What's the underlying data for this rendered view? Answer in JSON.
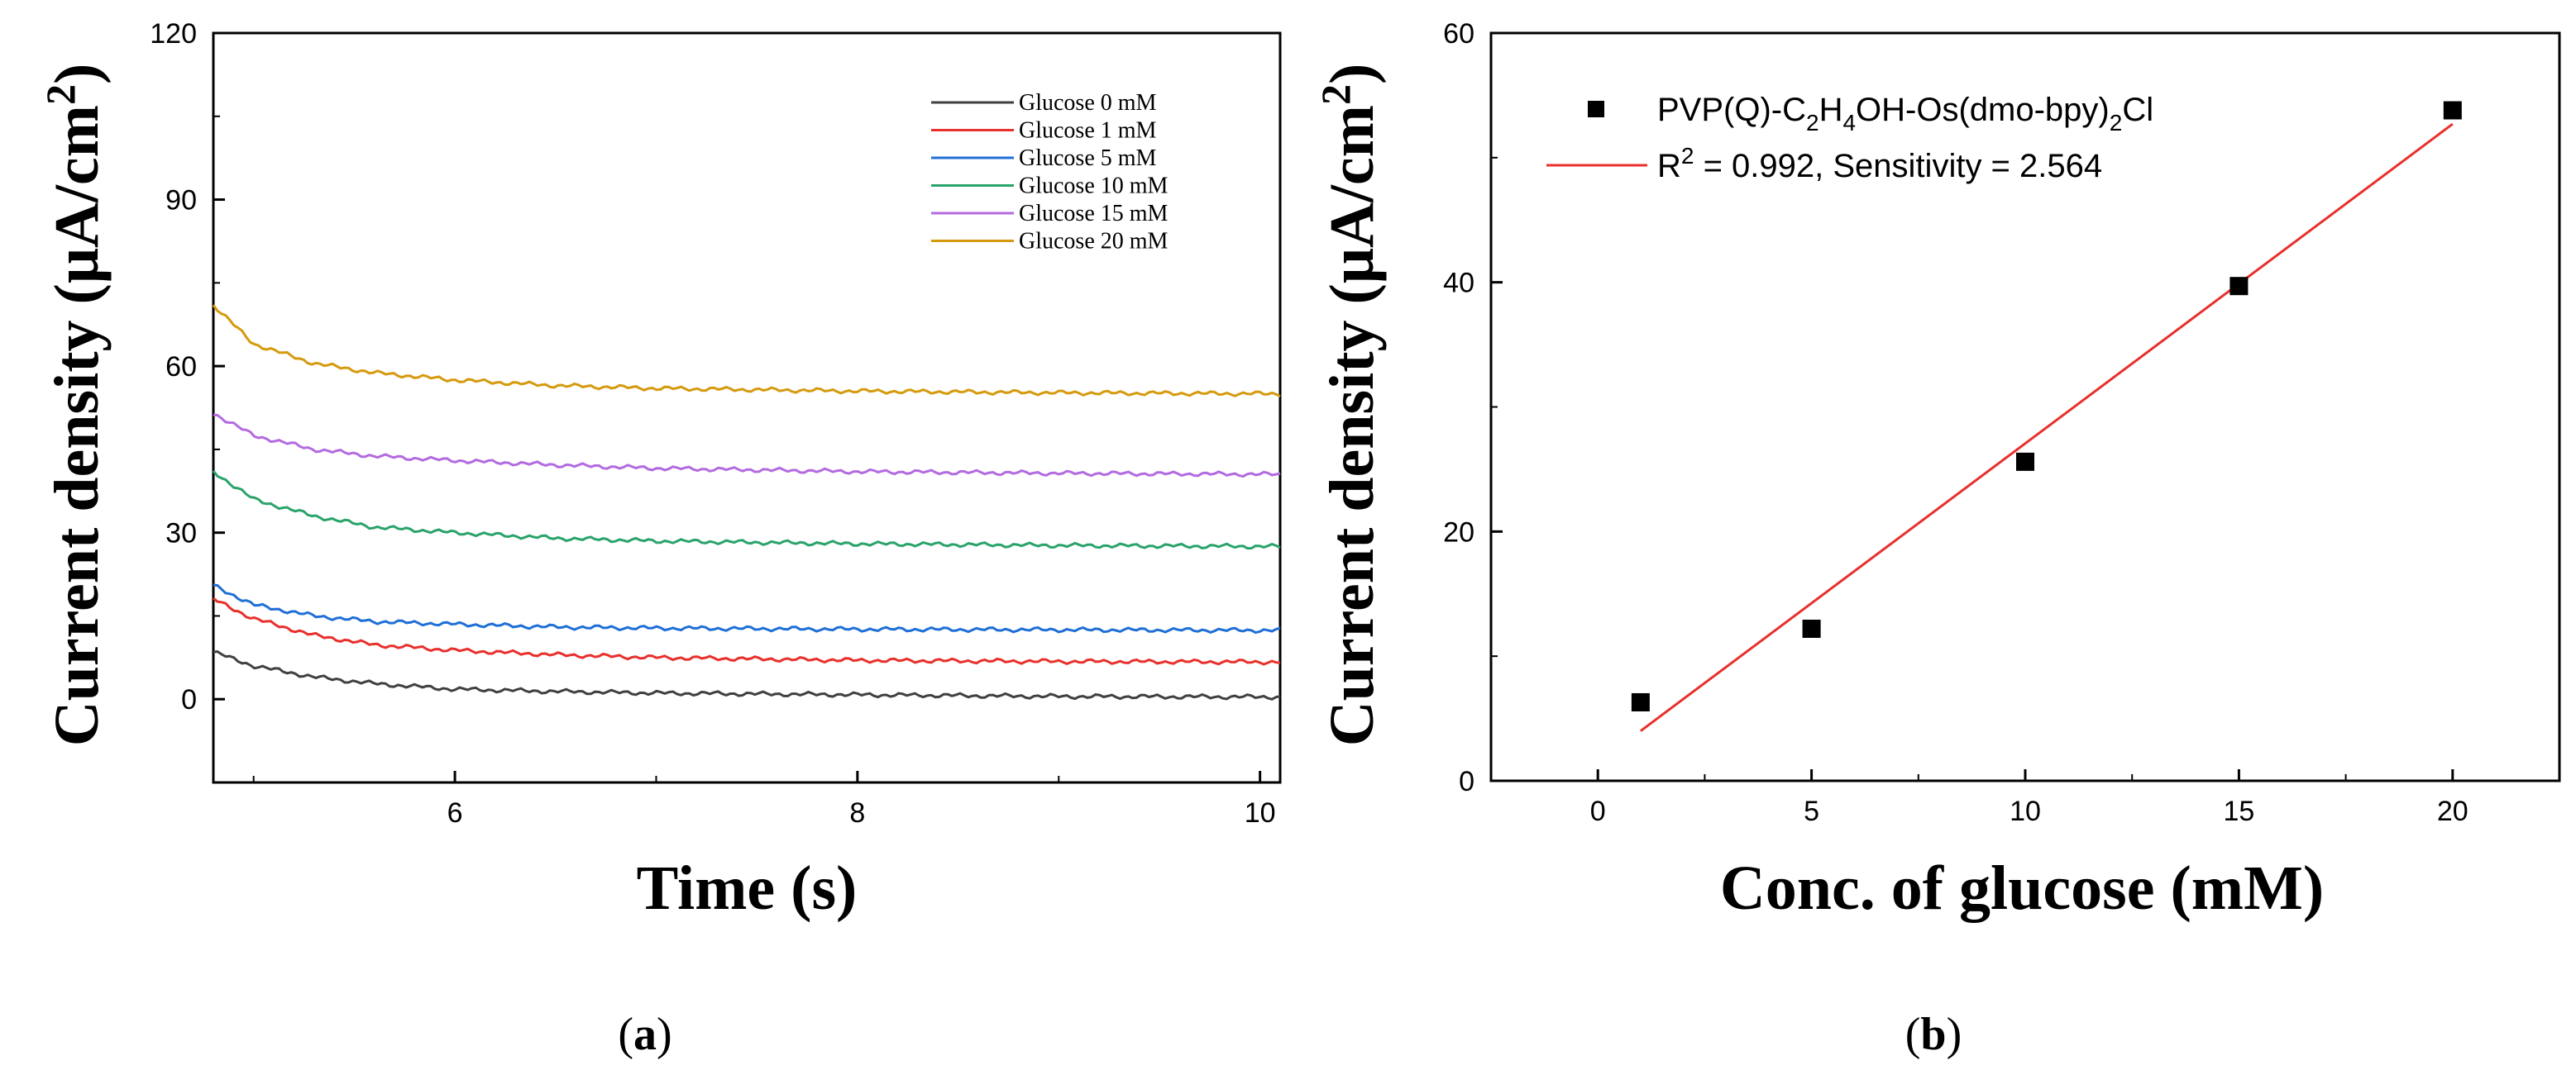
{
  "chart_data": [
    {
      "panel": "a",
      "type": "line",
      "xlabel": "Time (s)",
      "ylabel": "Current density (μA/cm²)",
      "ylabel_main": "Current density (μA/cm",
      "ylabel_sup": "2",
      "ylabel_close": ")",
      "xlim": [
        4.8,
        10.1
      ],
      "ylim": [
        -15,
        120
      ],
      "xticks": [
        6,
        8,
        10
      ],
      "yticks": [
        0,
        30,
        60,
        90,
        120
      ],
      "legend_position": "top-right",
      "x_start": 4.8,
      "x_end": 10.1,
      "series": [
        {
          "name": "Glucose 0 mM",
          "color": "#404040",
          "x": [
            4.8,
            5.0,
            5.3,
            5.6,
            6.0,
            6.5,
            7.0,
            8.0,
            9.0,
            10.1
          ],
          "y": [
            8.5,
            6.0,
            4.0,
            2.8,
            1.8,
            1.4,
            1.1,
            0.8,
            0.5,
            0.4
          ]
        },
        {
          "name": "Glucose 1 mM",
          "color": "#e8302c",
          "x": [
            4.8,
            5.0,
            5.3,
            5.6,
            6.0,
            6.5,
            7.0,
            8.0,
            9.0,
            10.1
          ],
          "y": [
            18.0,
            14.5,
            11.5,
            9.8,
            8.8,
            8.0,
            7.5,
            7.0,
            6.8,
            6.7
          ]
        },
        {
          "name": "Glucose 5 mM",
          "color": "#1f6fd6",
          "x": [
            4.8,
            5.0,
            5.3,
            5.6,
            6.0,
            6.5,
            7.0,
            8.0,
            9.0,
            10.1
          ],
          "y": [
            20.5,
            17.0,
            15.0,
            14.0,
            13.5,
            13.0,
            12.8,
            12.6,
            12.5,
            12.4
          ]
        },
        {
          "name": "Glucose 10 mM",
          "color": "#2aa36b",
          "x": [
            4.8,
            5.0,
            5.3,
            5.6,
            6.0,
            6.5,
            7.0,
            8.0,
            9.0,
            10.1
          ],
          "y": [
            41.0,
            36.0,
            33.0,
            31.0,
            30.0,
            29.0,
            28.5,
            28.0,
            27.7,
            27.5
          ]
        },
        {
          "name": "Glucose 15 mM",
          "color": "#b36be0",
          "x": [
            4.8,
            5.0,
            5.3,
            5.6,
            6.0,
            6.5,
            7.0,
            8.0,
            9.0,
            10.1
          ],
          "y": [
            51.5,
            47.5,
            45.0,
            43.8,
            43.0,
            42.2,
            41.6,
            41.0,
            40.7,
            40.5
          ]
        },
        {
          "name": "Glucose 20 mM",
          "color": "#d59a0e",
          "x": [
            4.8,
            5.0,
            5.3,
            5.6,
            6.0,
            6.5,
            7.0,
            8.0,
            9.0,
            10.1
          ],
          "y": [
            71.0,
            64.0,
            60.5,
            58.8,
            57.5,
            56.5,
            56.0,
            55.5,
            55.2,
            55.0
          ]
        }
      ]
    },
    {
      "panel": "b",
      "type": "scatter",
      "xlabel": "Conc. of glucose (mM)",
      "ylabel": "Current density (μA/cm²)",
      "ylabel_main": "Current density (μA/cm",
      "ylabel_sup": "2",
      "ylabel_close": ")",
      "xlim": [
        -2.5,
        22.5
      ],
      "ylim": [
        0,
        60
      ],
      "xticks": [
        0,
        5,
        10,
        15,
        20
      ],
      "yticks": [
        0,
        20,
        40,
        60
      ],
      "legend_position": "top-left",
      "series": [
        {
          "name": "PVP(Q)-C2H4OH-Os(dmo-bpy)2Cl",
          "marker": "square",
          "color": "#000000",
          "x": [
            1,
            5,
            10,
            15,
            20
          ],
          "y": [
            6.3,
            12.2,
            25.6,
            39.7,
            53.8
          ]
        }
      ],
      "fit": {
        "name": "R2 = 0.992, Sensitivity = 2.564",
        "color": "#e8302c",
        "x": [
          1,
          20
        ],
        "y": [
          4.0,
          52.7
        ]
      },
      "legend": {
        "scatter_label_parts": [
          "PVP(Q)-C",
          "2",
          "H",
          "4",
          "OH-Os(dmo-bpy)",
          "2",
          "Cl"
        ],
        "fit_label_parts": [
          "R",
          "2",
          " = 0.992, Sensitivity = 2.564"
        ]
      }
    }
  ],
  "captions": {
    "a": {
      "open": "(",
      "letter": "a",
      "close": ")"
    },
    "b": {
      "open": "(",
      "letter": "b",
      "close": ")"
    }
  }
}
